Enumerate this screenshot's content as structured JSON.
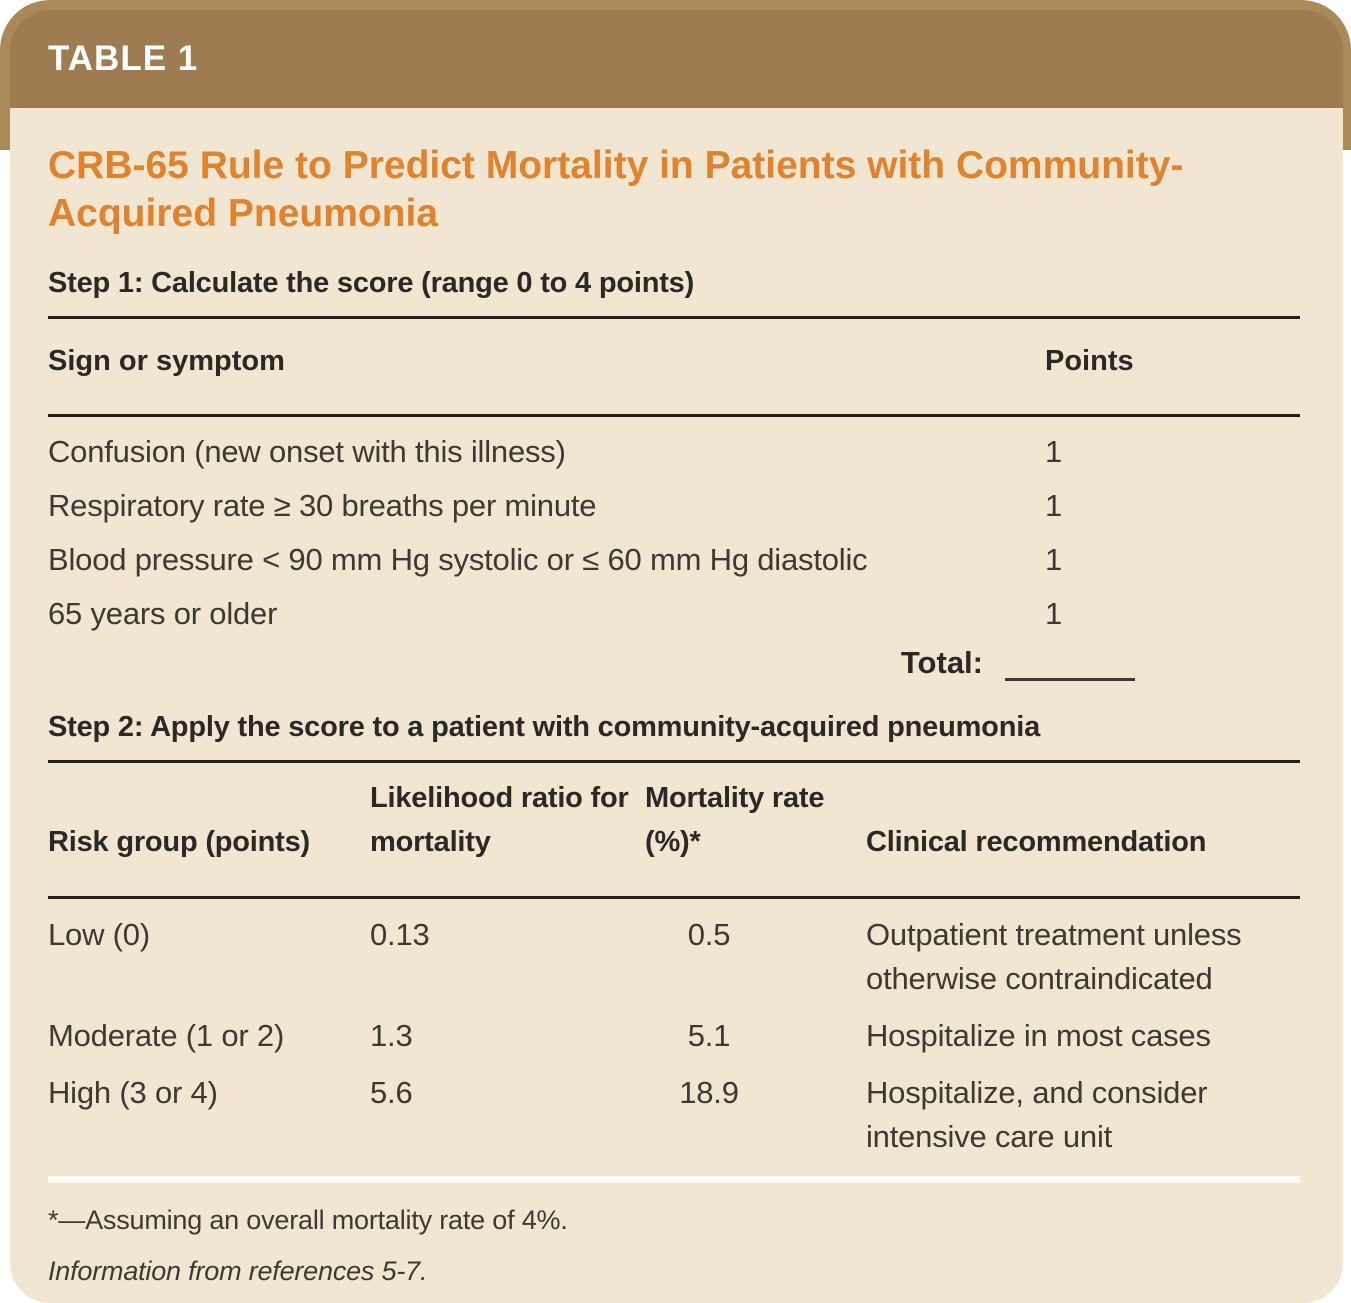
{
  "table_tag": "TABLE 1",
  "title": "CRB-65 Rule to Predict Mortality in Patients with Community-Acquired Pneumonia",
  "step1": {
    "heading": "Step 1: Calculate the score (range 0 to 4 points)",
    "columns": [
      "Sign or symptom",
      "Points"
    ],
    "rows": [
      {
        "sign": "Confusion (new onset with this illness)",
        "points": "1"
      },
      {
        "sign": "Respiratory rate ≥ 30 breaths per minute",
        "points": "1"
      },
      {
        "sign": "Blood pressure < 90 mm Hg systolic or ≤ 60 mm Hg diastolic",
        "points": "1"
      },
      {
        "sign": "65 years or older",
        "points": "1"
      }
    ],
    "total_label": "Total:"
  },
  "step2": {
    "heading": "Step 2: Apply the score to a patient with community-acquired pneumonia",
    "columns": [
      "Risk group (points)",
      "Likelihood ratio for mortality",
      "Mortality rate (%)*",
      "Clinical recommendation"
    ],
    "rows": [
      {
        "risk_group": "Low (0)",
        "likelihood_ratio": "0.13",
        "mortality_rate": "0.5",
        "recommendation": "Outpatient treatment unless otherwise contraindicated"
      },
      {
        "risk_group": "Moderate (1 or 2)",
        "likelihood_ratio": "1.3",
        "mortality_rate": "5.1",
        "recommendation": "Hospitalize in most cases"
      },
      {
        "risk_group": "High (3 or 4)",
        "likelihood_ratio": "5.6",
        "mortality_rate": "18.9",
        "recommendation": "Hospitalize, and consider intensive care unit"
      }
    ]
  },
  "footnotes": {
    "asterisk": "*—Assuming an overall mortality rate of 4%.",
    "source": "Information from references 5-7."
  },
  "colors": {
    "backdrop_tan": "#AB8A59",
    "header_brown": "#9E7B50",
    "body_beige": "#F0E6D2",
    "title_orange": "#E0832C",
    "heading_dark": "#2B2925",
    "text_dark": "#3C3A35"
  }
}
